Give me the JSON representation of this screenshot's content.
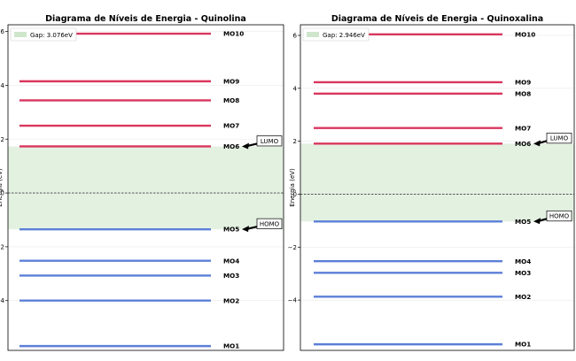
{
  "chart_data": [
    {
      "type": "energy-level-diagram",
      "title": "Diagrama de Níveis de Energia - Quinolina",
      "ylabel": "Energia (eV)",
      "ylim": [
        -5.85,
        6.25
      ],
      "yticks": [
        -4,
        -2,
        0,
        2,
        4,
        6
      ],
      "ytick_labels": [
        "−4",
        "−2",
        "0",
        "2",
        "4",
        "6"
      ],
      "levels": [
        {
          "label": "MO1",
          "energy": -5.69,
          "kind": "occupied"
        },
        {
          "label": "MO2",
          "energy": -4.0,
          "kind": "occupied"
        },
        {
          "label": "MO3",
          "energy": -3.07,
          "kind": "occupied"
        },
        {
          "label": "MO4",
          "energy": -2.52,
          "kind": "occupied"
        },
        {
          "label": "MO5",
          "energy": -1.35,
          "kind": "occupied"
        },
        {
          "label": "MO6",
          "energy": 1.73,
          "kind": "virtual"
        },
        {
          "label": "MO7",
          "energy": 2.5,
          "kind": "virtual"
        },
        {
          "label": "MO8",
          "energy": 3.44,
          "kind": "virtual"
        },
        {
          "label": "MO9",
          "energy": 4.15,
          "kind": "virtual"
        },
        {
          "label": "MO10",
          "energy": 5.92,
          "kind": "virtual"
        }
      ],
      "homo": {
        "label": "HOMO",
        "energy": -1.35
      },
      "lumo": {
        "label": "LUMO",
        "energy": 1.73
      },
      "gap_legend": "Gap: 3.076eV",
      "zero_line": true
    },
    {
      "type": "energy-level-diagram",
      "title": "Diagrama de Níveis de Energia - Quinoxalina",
      "ylabel": "Energia (eV)",
      "ylim": [
        -5.9,
        6.4
      ],
      "yticks": [
        -4,
        -2,
        0,
        2,
        4,
        6
      ],
      "ytick_labels": [
        "−4",
        "−2",
        "0",
        "2",
        "4",
        "6"
      ],
      "levels": [
        {
          "label": "MO1",
          "energy": -5.67,
          "kind": "occupied"
        },
        {
          "label": "MO2",
          "energy": -3.87,
          "kind": "occupied"
        },
        {
          "label": "MO3",
          "energy": -2.97,
          "kind": "occupied"
        },
        {
          "label": "MO4",
          "energy": -2.53,
          "kind": "occupied"
        },
        {
          "label": "MO5",
          "energy": -1.03,
          "kind": "occupied"
        },
        {
          "label": "MO6",
          "energy": 1.91,
          "kind": "virtual"
        },
        {
          "label": "MO7",
          "energy": 2.5,
          "kind": "virtual"
        },
        {
          "label": "MO8",
          "energy": 3.8,
          "kind": "virtual"
        },
        {
          "label": "MO9",
          "energy": 4.23,
          "kind": "virtual"
        },
        {
          "label": "MO10",
          "energy": 6.04,
          "kind": "virtual"
        }
      ],
      "homo": {
        "label": "HOMO",
        "energy": -1.03
      },
      "lumo": {
        "label": "LUMO",
        "energy": 1.91
      },
      "gap_legend": "Gap: 2.946eV",
      "zero_line": true
    }
  ],
  "colors": {
    "occupied": "#5b7fd8",
    "virtual": "#d9365e",
    "gap_fill": "#e3f1e1",
    "gap_patch": "#cfe6cc",
    "gridline": "#eaeaea",
    "frame": "#000000"
  }
}
